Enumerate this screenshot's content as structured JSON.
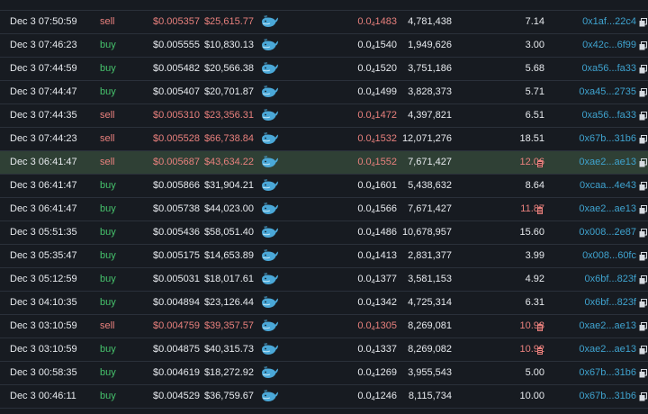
{
  "colors": {
    "background": "#171b21",
    "highlight_row": "#2f4035",
    "sell": "#e8807d",
    "buy": "#46c26c",
    "text": "#e7eaee",
    "link": "#3fa3cf",
    "whale_icon": "#4aa8d8"
  },
  "trades": [
    {
      "date": "Dec 3 07:50:59",
      "type": "sell",
      "price": "$0.005357",
      "total": "$25,615.77",
      "amount_prefix": "0.0",
      "amount_sub": "4",
      "amount_rest": "1483",
      "quantity": "4,781,438",
      "ratio": "7.14",
      "flag": false,
      "maker": "0x1af...22c4"
    },
    {
      "date": "Dec 3 07:46:23",
      "type": "buy",
      "price": "$0.005555",
      "total": "$10,830.13",
      "amount_prefix": "0.0",
      "amount_sub": "4",
      "amount_rest": "1540",
      "quantity": "1,949,626",
      "ratio": "3.00",
      "flag": false,
      "maker": "0x42c...6f99"
    },
    {
      "date": "Dec 3 07:44:59",
      "type": "buy",
      "price": "$0.005482",
      "total": "$20,566.38",
      "amount_prefix": "0.0",
      "amount_sub": "4",
      "amount_rest": "1520",
      "quantity": "3,751,186",
      "ratio": "5.68",
      "flag": false,
      "maker": "0xa56...fa33"
    },
    {
      "date": "Dec 3 07:44:47",
      "type": "buy",
      "price": "$0.005407",
      "total": "$20,701.87",
      "amount_prefix": "0.0",
      "amount_sub": "4",
      "amount_rest": "1499",
      "quantity": "3,828,373",
      "ratio": "5.71",
      "flag": false,
      "maker": "0xa45...2735"
    },
    {
      "date": "Dec 3 07:44:35",
      "type": "sell",
      "price": "$0.005310",
      "total": "$23,356.31",
      "amount_prefix": "0.0",
      "amount_sub": "4",
      "amount_rest": "1472",
      "quantity": "4,397,821",
      "ratio": "6.51",
      "flag": false,
      "maker": "0xa56...fa33"
    },
    {
      "date": "Dec 3 07:44:23",
      "type": "sell",
      "price": "$0.005528",
      "total": "$66,738.84",
      "amount_prefix": "0.0",
      "amount_sub": "4",
      "amount_rest": "1532",
      "quantity": "12,071,276",
      "ratio": "18.51",
      "flag": false,
      "maker": "0x67b...31b6"
    },
    {
      "date": "Dec 3 06:41:47",
      "type": "sell",
      "price": "$0.005687",
      "total": "$43,634.22",
      "amount_prefix": "0.0",
      "amount_sub": "4",
      "amount_rest": "1552",
      "quantity": "7,671,427",
      "ratio": "12.06",
      "flag": true,
      "maker": "0xae2...ae13",
      "highlight": true
    },
    {
      "date": "Dec 3 06:41:47",
      "type": "buy",
      "price": "$0.005866",
      "total": "$31,904.21",
      "amount_prefix": "0.0",
      "amount_sub": "4",
      "amount_rest": "1601",
      "quantity": "5,438,632",
      "ratio": "8.64",
      "flag": false,
      "maker": "0xcaa...4e43"
    },
    {
      "date": "Dec 3 06:41:47",
      "type": "buy",
      "price": "$0.005738",
      "total": "$44,023.00",
      "amount_prefix": "0.0",
      "amount_sub": "4",
      "amount_rest": "1566",
      "quantity": "7,671,427",
      "ratio": "11.87",
      "flag": true,
      "maker": "0xae2...ae13"
    },
    {
      "date": "Dec 3 05:51:35",
      "type": "buy",
      "price": "$0.005436",
      "total": "$58,051.40",
      "amount_prefix": "0.0",
      "amount_sub": "4",
      "amount_rest": "1486",
      "quantity": "10,678,957",
      "ratio": "15.60",
      "flag": false,
      "maker": "0x008...2e87"
    },
    {
      "date": "Dec 3 05:35:47",
      "type": "buy",
      "price": "$0.005175",
      "total": "$14,653.89",
      "amount_prefix": "0.0",
      "amount_sub": "4",
      "amount_rest": "1413",
      "quantity": "2,831,377",
      "ratio": "3.99",
      "flag": false,
      "maker": "0x008...60fc"
    },
    {
      "date": "Dec 3 05:12:59",
      "type": "buy",
      "price": "$0.005031",
      "total": "$18,017.61",
      "amount_prefix": "0.0",
      "amount_sub": "4",
      "amount_rest": "1377",
      "quantity": "3,581,153",
      "ratio": "4.92",
      "flag": false,
      "maker": "0x6bf...823f"
    },
    {
      "date": "Dec 3 04:10:35",
      "type": "buy",
      "price": "$0.004894",
      "total": "$23,126.44",
      "amount_prefix": "0.0",
      "amount_sub": "4",
      "amount_rest": "1342",
      "quantity": "4,725,314",
      "ratio": "6.31",
      "flag": false,
      "maker": "0x6bf...823f"
    },
    {
      "date": "Dec 3 03:10:59",
      "type": "sell",
      "price": "$0.004759",
      "total": "$39,357.57",
      "amount_prefix": "0.0",
      "amount_sub": "4",
      "amount_rest": "1305",
      "quantity": "8,269,081",
      "ratio": "10.93",
      "flag": true,
      "maker": "0xae2...ae13"
    },
    {
      "date": "Dec 3 03:10:59",
      "type": "buy",
      "price": "$0.004875",
      "total": "$40,315.73",
      "amount_prefix": "0.0",
      "amount_sub": "4",
      "amount_rest": "1337",
      "quantity": "8,269,082",
      "ratio": "10.92",
      "flag": true,
      "maker": "0xae2...ae13"
    },
    {
      "date": "Dec 3 00:58:35",
      "type": "buy",
      "price": "$0.004619",
      "total": "$18,272.92",
      "amount_prefix": "0.0",
      "amount_sub": "4",
      "amount_rest": "1269",
      "quantity": "3,955,543",
      "ratio": "5.00",
      "flag": false,
      "maker": "0x67b...31b6"
    },
    {
      "date": "Dec 3 00:46:11",
      "type": "buy",
      "price": "$0.004529",
      "total": "$36,759.67",
      "amount_prefix": "0.0",
      "amount_sub": "4",
      "amount_rest": "1246",
      "quantity": "8,115,734",
      "ratio": "10.00",
      "flag": false,
      "maker": "0x67b...31b6"
    }
  ]
}
